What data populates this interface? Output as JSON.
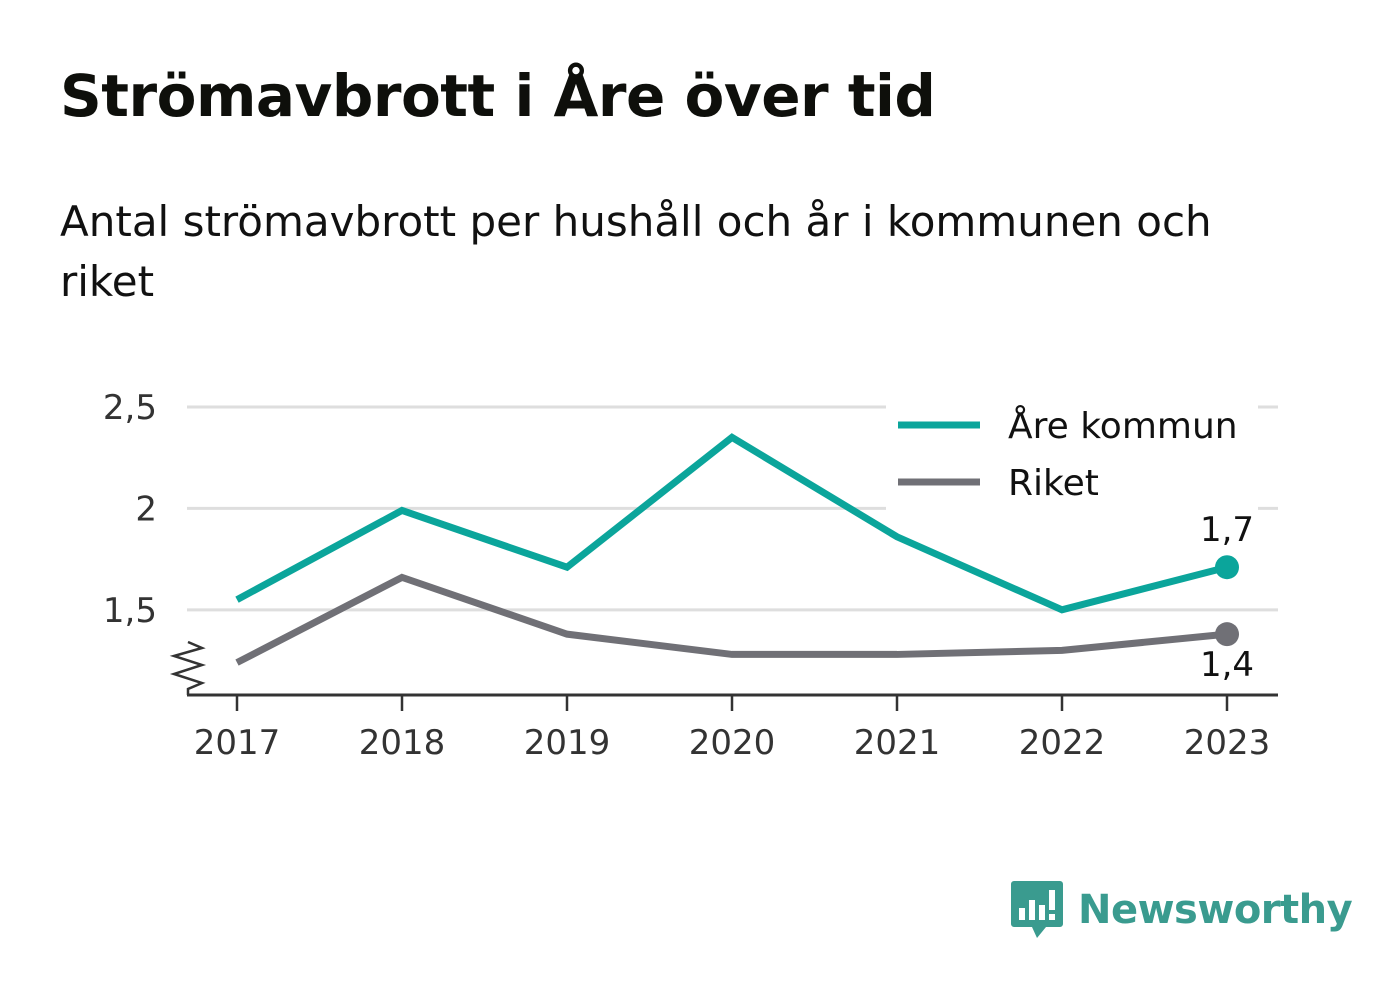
{
  "title": "Strömavbrott i Åre över tid",
  "subtitle": "Antal strömavbrott per hushåll och år i kommunen och riket",
  "brand": {
    "name": "Newsworthy",
    "icon": "bar-chart-speech-bubble-icon"
  },
  "colors": {
    "are": "#0ba59b",
    "riket": "#707076",
    "grid": "#dedede",
    "axis": "#333333",
    "brand": "#3a9b8f"
  },
  "chart_data": {
    "type": "line",
    "x": [
      "2017",
      "2018",
      "2019",
      "2020",
      "2021",
      "2022",
      "2023"
    ],
    "y_ticks": [
      "2,5",
      "2",
      "1,5"
    ],
    "y_tick_values": [
      2.5,
      2.0,
      1.5
    ],
    "ylim": [
      1.08,
      2.5
    ],
    "y_axis_break": true,
    "grid": true,
    "legend_position": "top-right",
    "series": [
      {
        "name": "Åre kommun",
        "values": [
          1.55,
          1.99,
          1.71,
          2.35,
          1.86,
          1.5,
          1.71
        ],
        "end_label": "1,7"
      },
      {
        "name": "Riket",
        "values": [
          1.24,
          1.66,
          1.38,
          1.28,
          1.28,
          1.3,
          1.38
        ],
        "end_label": "1,4"
      }
    ]
  }
}
